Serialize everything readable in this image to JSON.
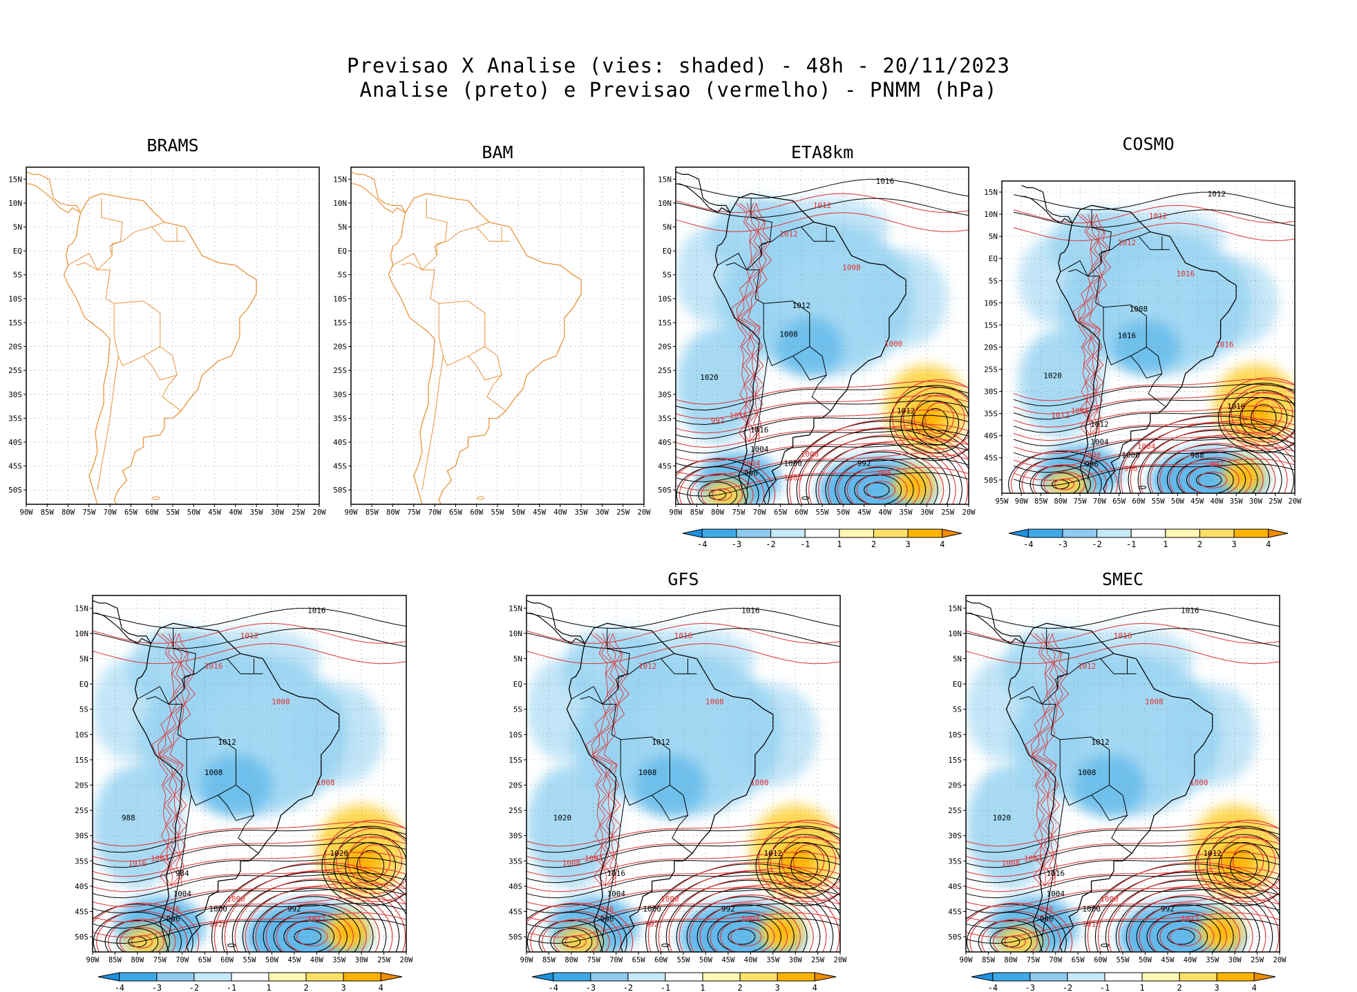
{
  "header": {
    "title_line1": "Previsao X Analise (vies: shaded) - 48h - 20/11/2023",
    "title_line2": "Analise (preto) e Previsao (vermelho) - PNMM (hPa)"
  },
  "axes": {
    "lat_labels": [
      "15N",
      "10N",
      "5N",
      "EQ",
      "5S",
      "10S",
      "15S",
      "20S",
      "25S",
      "30S",
      "35S",
      "40S",
      "45S",
      "50S"
    ],
    "lon_labels_90": [
      "90W",
      "85W",
      "80W",
      "75W",
      "70W",
      "65W",
      "60W",
      "55W",
      "50W",
      "45W",
      "40W",
      "35W",
      "30W",
      "25W",
      "20W"
    ],
    "lon_labels_95": [
      "95W",
      "90W",
      "85W",
      "80W",
      "75W",
      "70W",
      "65W",
      "60W",
      "55W",
      "50W",
      "45W",
      "40W",
      "35W",
      "30W",
      "25W",
      "20W"
    ]
  },
  "colorbar": {
    "labels": [
      "-4",
      "-3",
      "-2",
      "-1",
      "1",
      "2",
      "3",
      "4"
    ],
    "colors": [
      "#3fa9e8",
      "#8fcbf0",
      "#c6e9f7",
      "#ffffff",
      "#fff7b3",
      "#ffe066",
      "#ffb300"
    ]
  },
  "colors": {
    "coast": "#e8923a",
    "analysis": "#000000",
    "forecast": "#e03030",
    "neg_bias": "#9ad4f2",
    "pos_bias": "#ffd54a"
  },
  "panels": [
    {
      "id": "brams",
      "title": "BRAMS",
      "has_data": false,
      "has_colorbar": false,
      "black_labels": [],
      "red_labels": []
    },
    {
      "id": "bam",
      "title": "BAM",
      "has_data": false,
      "has_colorbar": false,
      "black_labels": [],
      "red_labels": []
    },
    {
      "id": "eta",
      "title": "ETA8km",
      "has_data": true,
      "has_colorbar": true,
      "black_labels": [
        "1016",
        "1012",
        "1008",
        "1004",
        "1000",
        "996",
        "992",
        "1020",
        "1016",
        "1012"
      ],
      "red_labels": [
        "1012",
        "1012",
        "1008",
        "1016",
        "1008",
        "1004",
        "1000",
        "996",
        "992",
        "1000"
      ]
    },
    {
      "id": "cosmo",
      "title": "COSMO",
      "has_data": true,
      "has_colorbar": true,
      "black_labels": [
        "1012",
        "1008",
        "1016",
        "1004",
        "1000",
        "996",
        "988",
        "1020",
        "1012",
        "1016"
      ],
      "red_labels": [
        "1012",
        "1012",
        "1016",
        "1008",
        "1004",
        "1000",
        "996",
        "992",
        "1012",
        "1016"
      ]
    },
    {
      "id": "p5",
      "title": "",
      "has_data": true,
      "has_colorbar": true,
      "black_labels": [
        "1016",
        "1012",
        "1008",
        "1004",
        "1000",
        "996",
        "992",
        "988",
        "984",
        "1020"
      ],
      "red_labels": [
        "1012",
        "1016",
        "1008",
        "1004",
        "1000",
        "996",
        "1020",
        "1012",
        "1016",
        "1008"
      ]
    },
    {
      "id": "gfs",
      "title": "GFS",
      "has_data": true,
      "has_colorbar": true,
      "black_labels": [
        "1016",
        "1012",
        "1008",
        "1004",
        "1000",
        "996",
        "992",
        "1020",
        "1016",
        "1012"
      ],
      "red_labels": [
        "1016",
        "1012",
        "1008",
        "1004",
        "1000",
        "996",
        "992",
        "1004",
        "1008",
        "1000"
      ]
    },
    {
      "id": "smec",
      "title": "SMEC",
      "has_data": true,
      "has_colorbar": true,
      "black_labels": [
        "1016",
        "1012",
        "1008",
        "1004",
        "1000",
        "996",
        "992",
        "1020",
        "1016",
        "1012"
      ],
      "red_labels": [
        "1016",
        "1012",
        "1008",
        "1004",
        "1000",
        "996",
        "1016",
        "1012",
        "1008",
        "1000"
      ]
    }
  ]
}
